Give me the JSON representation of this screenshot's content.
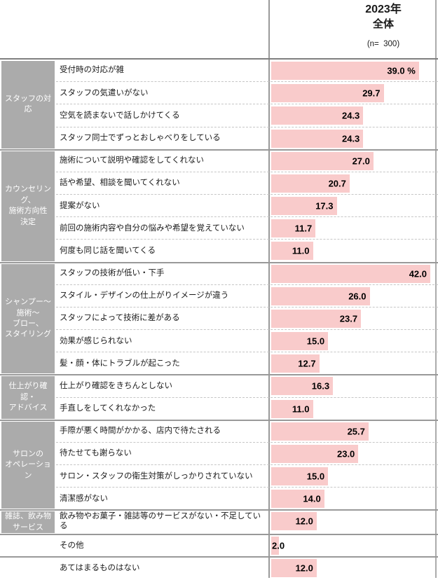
{
  "header": {
    "year_label": "2023年",
    "group_label": "全体",
    "sample_size_label": "(n=  300)"
  },
  "colors": {
    "bar": "#f9cbcb",
    "category_bg": "#ababab",
    "category_text": "#ffffff",
    "group_separator": "#999999",
    "row_separator_dashed": "#c6c6c6",
    "axis_line": "#9a9a9a",
    "header_border": "#7f7f7f"
  },
  "chart_data": {
    "type": "bar",
    "orientation": "horizontal",
    "unit": "%",
    "value_axis_max": 44,
    "sample_size": 300,
    "groups": [
      {
        "category": "スタッフの対応",
        "category_lines": [
          "スタッフの対応"
        ],
        "items": [
          {
            "label": "受付時の対応が雑",
            "value": 39.0,
            "value_label": "39.0 %"
          },
          {
            "label": "スタッフの気遣いがない",
            "value": 29.7,
            "value_label": "29.7"
          },
          {
            "label": "空気を読まないで話しかけてくる",
            "value": 24.3,
            "value_label": "24.3"
          },
          {
            "label": "スタッフ同士でずっとおしゃべりをしている",
            "value": 24.3,
            "value_label": "24.3"
          }
        ]
      },
      {
        "category": "カウンセリング、施術方向性決定",
        "category_lines": [
          "カウンセリング、",
          "施術方向性",
          "決定"
        ],
        "items": [
          {
            "label": "施術について説明や確認をしてくれない",
            "value": 27.0,
            "value_label": "27.0"
          },
          {
            "label": "話や希望、相談を聞いてくれない",
            "value": 20.7,
            "value_label": "20.7"
          },
          {
            "label": "提案がない",
            "value": 17.3,
            "value_label": "17.3"
          },
          {
            "label": "前回の施術内容や自分の悩みや希望を覚えていない",
            "value": 11.7,
            "value_label": "11.7"
          },
          {
            "label": "何度も同じ話を聞いてくる",
            "value": 11.0,
            "value_label": "11.0"
          }
        ]
      },
      {
        "category": "シャンプー～施術～ブロー、スタイリング",
        "category_lines": [
          "シャンプー～",
          "施術～",
          "ブロー、",
          "スタイリング"
        ],
        "items": [
          {
            "label": "スタッフの技術が低い・下手",
            "value": 42.0,
            "value_label": "42.0"
          },
          {
            "label": "スタイル・デザインの仕上がりイメージが違う",
            "value": 26.0,
            "value_label": "26.0"
          },
          {
            "label": "スタッフによって技術に差がある",
            "value": 23.7,
            "value_label": "23.7"
          },
          {
            "label": "効果が感じられない",
            "value": 15.0,
            "value_label": "15.0"
          },
          {
            "label": "髪・顔・体にトラブルが起こった",
            "value": 12.7,
            "value_label": "12.7"
          }
        ]
      },
      {
        "category": "仕上がり確認・アドバイス",
        "category_lines": [
          "仕上がり確認・",
          "アドバイス"
        ],
        "items": [
          {
            "label": "仕上がり確認をきちんとしない",
            "value": 16.3,
            "value_label": "16.3"
          },
          {
            "label": "手直しをしてくれなかった",
            "value": 11.0,
            "value_label": "11.0"
          }
        ]
      },
      {
        "category": "サロンのオペレーション",
        "category_lines": [
          "サロンの",
          "オペレーション"
        ],
        "items": [
          {
            "label": "手際が悪く時間がかかる、店内で待たされる",
            "value": 25.7,
            "value_label": "25.7"
          },
          {
            "label": "待たせても謝らない",
            "value": 23.0,
            "value_label": "23.0"
          },
          {
            "label": "サロン・スタッフの衛生対策がしっかりされていない",
            "value": 15.0,
            "value_label": "15.0"
          },
          {
            "label": "清潔感がない",
            "value": 14.0,
            "value_label": "14.0"
          }
        ]
      },
      {
        "category": "雑誌、飲み物サービス",
        "category_lines": [
          "雑誌、飲み物",
          "サービス"
        ],
        "items": [
          {
            "label": "飲み物やお菓子・雑誌等のサービスがない・不足している",
            "value": 12.0,
            "value_label": "12.0"
          }
        ]
      },
      {
        "category": "",
        "category_lines": [],
        "items": [
          {
            "label": "その他",
            "value": 2.0,
            "value_label": "2.0"
          }
        ]
      },
      {
        "category": "",
        "category_lines": [],
        "items": [
          {
            "label": "あてはまるものはない",
            "value": 12.0,
            "value_label": "12.0"
          }
        ]
      }
    ]
  }
}
